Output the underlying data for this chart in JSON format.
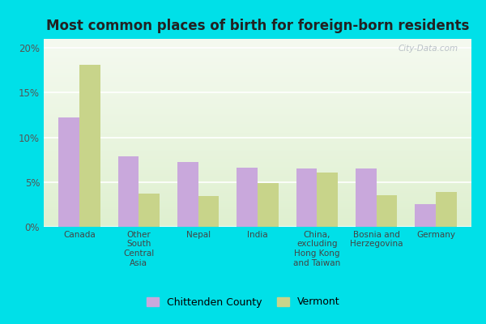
{
  "title": "Most common places of birth for foreign-born residents",
  "categories": [
    "Canada",
    "Other\nSouth\nCentral\nAsia",
    "Nepal",
    "India",
    "China,\nexcluding\nHong Kong\nand Taiwan",
    "Bosnia and\nHerzegovina",
    "Germany"
  ],
  "chittenden": [
    12.2,
    7.9,
    7.2,
    6.6,
    6.5,
    6.5,
    2.5
  ],
  "vermont": [
    18.1,
    3.7,
    3.4,
    4.9,
    6.1,
    3.5,
    3.9
  ],
  "chittenden_color": "#c9a8dc",
  "vermont_color": "#c8d48a",
  "ylim": [
    0,
    21
  ],
  "yticks": [
    0,
    5,
    10,
    15,
    20
  ],
  "ytick_labels": [
    "0%",
    "5%",
    "10%",
    "15%",
    "20%"
  ],
  "legend_labels": [
    "Chittenden County",
    "Vermont"
  ],
  "bar_width": 0.35,
  "background_outer": "#00e0e8",
  "background_inner_color": "#e8f5e0",
  "grid_color": "#ffffff",
  "watermark": "City-Data.com",
  "title_fontsize": 12,
  "tick_fontsize": 8.5
}
